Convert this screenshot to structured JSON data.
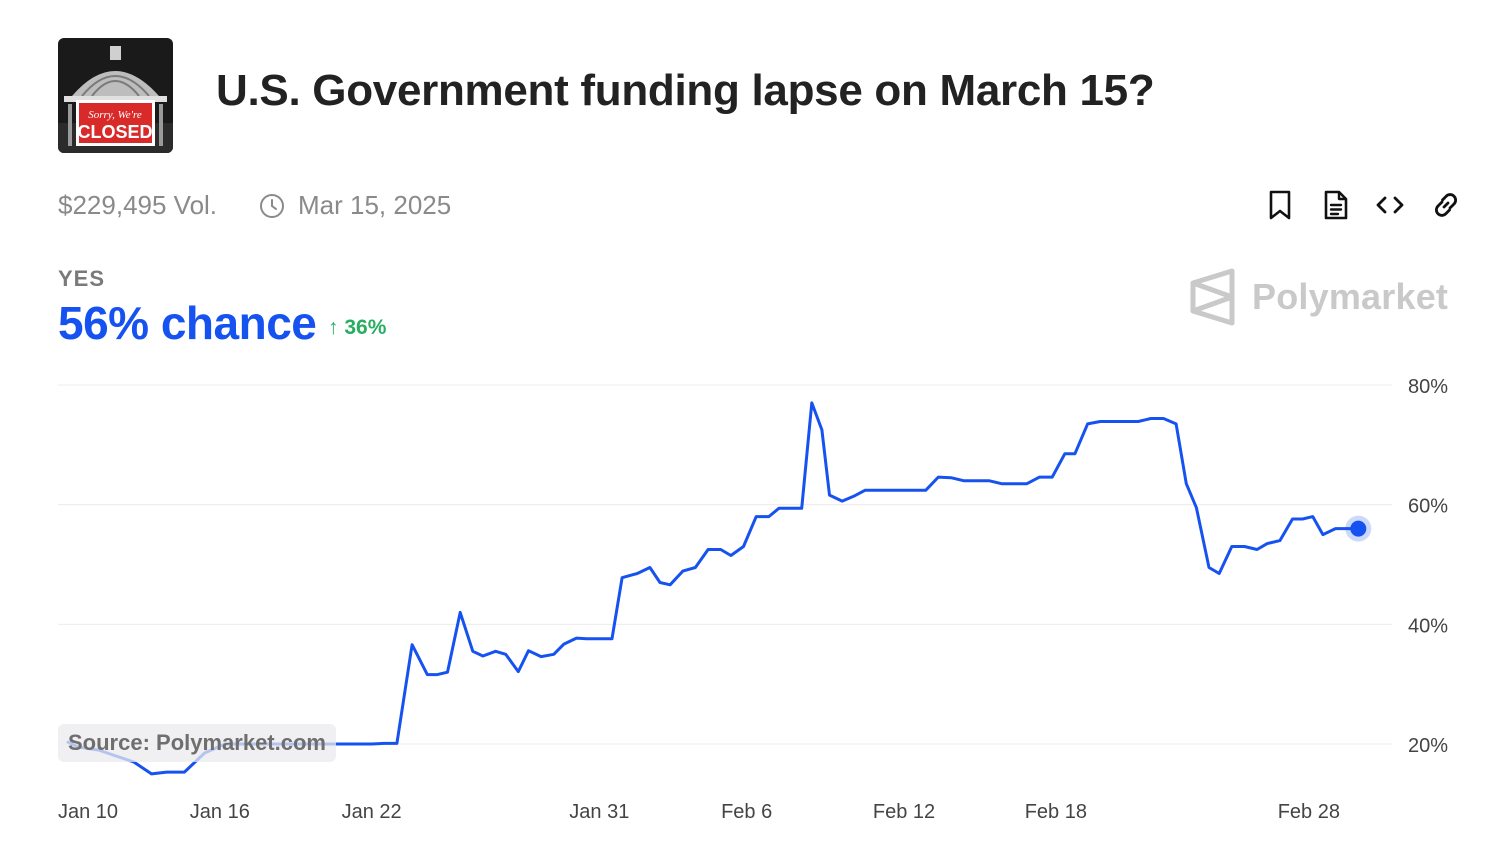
{
  "header": {
    "title": "U.S. Government funding lapse on March 15?",
    "thumbnail_text_top": "Sorry, We're",
    "thumbnail_text_bottom": "CLOSED"
  },
  "meta": {
    "volume": "$229,495 Vol.",
    "end_date": "Mar 15, 2025"
  },
  "toolbar": {
    "icons": [
      "bookmark-icon",
      "document-icon",
      "embed-code-icon",
      "link-icon"
    ]
  },
  "outcome": {
    "label": "YES",
    "chance": "56% chance",
    "change": "36%"
  },
  "brand": {
    "name": "Polymarket"
  },
  "source": "Source: Polymarket.com",
  "colors": {
    "accent": "#1652f0",
    "up": "#27ae60",
    "grid": "#ececec",
    "muted": "#8a8a8a"
  },
  "chart_data": {
    "type": "line",
    "ylim": [
      14,
      80
    ],
    "yticks": [
      80,
      60,
      40,
      20
    ],
    "ytick_labels": [
      "80%",
      "60%",
      "40%",
      "20%"
    ],
    "xticks": [
      {
        "label": "Jan 10",
        "day": 0
      },
      {
        "label": "Jan 16",
        "day": 6
      },
      {
        "label": "Jan 22",
        "day": 12
      },
      {
        "label": "Jan 31",
        "day": 21
      },
      {
        "label": "Feb 6",
        "day": 27
      },
      {
        "label": "Feb 12",
        "day": 33
      },
      {
        "label": "Feb 18",
        "day": 39
      },
      {
        "label": "Feb 28",
        "day": 49
      }
    ],
    "grid": true,
    "series": [
      {
        "values_x_day": [
          0,
          0.4,
          1.2,
          1.9,
          2.6,
          3.3,
          3.9,
          4.6,
          5.4,
          6.2,
          7.0,
          8.0,
          9.0,
          10.0,
          11.0,
          12.0,
          12.5,
          13.0,
          13.6,
          14.2,
          14.6,
          15.0,
          15.5,
          16.0,
          16.4,
          16.9,
          17.3,
          17.8,
          18.2,
          18.7,
          19.2,
          19.6,
          20.1,
          20.5,
          21.0,
          21.5,
          21.9,
          22.5,
          23.0,
          23.4,
          23.8,
          24.3,
          24.8,
          25.3,
          25.8,
          26.2,
          26.7,
          27.2,
          27.7,
          28.1,
          28.6,
          29.0,
          29.4,
          29.8,
          30.1,
          30.6,
          31.1,
          31.5,
          32.0,
          32.4,
          32.9,
          33.4,
          33.9,
          34.4,
          34.9,
          35.4,
          35.9,
          36.4,
          36.9,
          37.4,
          37.9,
          38.4,
          38.9,
          39.4,
          39.8,
          40.3,
          40.8,
          41.3,
          41.8,
          42.3,
          42.8,
          43.3,
          43.8,
          44.2,
          44.6,
          45.1,
          45.5,
          46.0,
          46.5,
          47.0,
          47.4,
          47.9,
          48.4,
          48.8,
          49.2,
          49.6,
          50.1,
          50.6,
          51.0
        ],
        "values_y": [
          20.3,
          19.5,
          19.0,
          18.0,
          17.0,
          15.0,
          15.3,
          15.3,
          18.5,
          20.0,
          20.0,
          20.0,
          20.0,
          20.0,
          20.0,
          20.0,
          20.1,
          20.1,
          36.6,
          31.6,
          31.6,
          32.0,
          42.0,
          35.5,
          34.7,
          35.5,
          35.0,
          32.1,
          35.6,
          34.6,
          35.0,
          36.7,
          37.7,
          37.6,
          37.6,
          37.6,
          47.8,
          48.5,
          49.5,
          47.0,
          46.6,
          48.9,
          49.5,
          52.5,
          52.5,
          51.5,
          53.0,
          58.0,
          58.0,
          59.4,
          59.4,
          59.4,
          77.0,
          72.5,
          61.6,
          60.6,
          61.5,
          62.4,
          62.4,
          62.4,
          62.4,
          62.4,
          62.4,
          64.6,
          64.5,
          64.0,
          64.0,
          64.0,
          63.5,
          63.5,
          63.5,
          64.6,
          64.6,
          68.5,
          68.5,
          73.5,
          73.9,
          73.9,
          73.9,
          73.9,
          74.4,
          74.4,
          73.5,
          63.5,
          59.5,
          49.5,
          48.5,
          53.0,
          53.0,
          52.5,
          53.5,
          54.0,
          57.6,
          57.6,
          58.0,
          55.0,
          56.0,
          56.0,
          56.0
        ]
      }
    ],
    "current_point": {
      "day": 51.0,
      "value": 56
    }
  }
}
